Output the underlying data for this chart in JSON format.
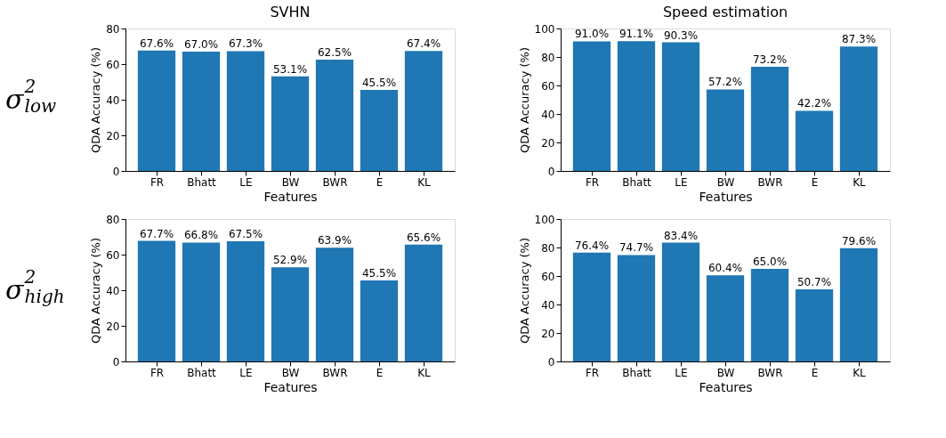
{
  "chart_data": [
    {
      "type": "bar",
      "title": "SVHN",
      "xlabel": "Features",
      "ylabel": "QDA Accuracy (%)",
      "categories": [
        "FR",
        "Bhatt",
        "LE",
        "BW",
        "BWR",
        "E",
        "KL"
      ],
      "values": [
        67.6,
        67.0,
        67.3,
        53.1,
        62.5,
        45.5,
        67.4
      ],
      "value_labels": [
        "67.6%",
        "67.0%",
        "67.3%",
        "53.1%",
        "62.5%",
        "45.5%",
        "67.4%"
      ],
      "color": "#1f77b4",
      "ylim": [
        0,
        80
      ],
      "yticks": [
        0,
        20,
        40,
        60,
        80
      ],
      "grid": false,
      "annotations": [
        "σ$^{2}$$_{low}$"
      ]
    },
    {
      "type": "bar",
      "title": "Speed estimation",
      "xlabel": "Features",
      "ylabel": "QDA Accuracy (%)",
      "categories": [
        "FR",
        "Bhatt",
        "LE",
        "BW",
        "BWR",
        "E",
        "KL"
      ],
      "values": [
        91.0,
        91.1,
        90.3,
        57.2,
        73.2,
        42.2,
        87.3
      ],
      "value_labels": [
        "91.0%",
        "91.1%",
        "90.3%",
        "57.2%",
        "73.2%",
        "42.2%",
        "87.3%"
      ],
      "color": "#1f77b4",
      "ylim": [
        0,
        100
      ],
      "yticks": [
        0,
        20,
        40,
        60,
        80,
        100
      ],
      "grid": false
    },
    {
      "type": "bar",
      "xlabel": "Features",
      "ylabel": "QDA Accuracy (%)",
      "categories": [
        "FR",
        "Bhatt",
        "LE",
        "BW",
        "BWR",
        "E",
        "KL"
      ],
      "values": [
        67.7,
        66.8,
        67.5,
        52.9,
        63.9,
        45.5,
        65.6
      ],
      "value_labels": [
        "67.7%",
        "66.8%",
        "67.5%",
        "52.9%",
        "63.9%",
        "45.5%",
        "65.6%"
      ],
      "color": "#1f77b4",
      "ylim": [
        0,
        80
      ],
      "yticks": [
        0,
        20,
        40,
        60,
        80
      ],
      "grid": false,
      "annotations": [
        "σ$^{2}$$_{high}$"
      ]
    },
    {
      "type": "bar",
      "xlabel": "Features",
      "ylabel": "QDA Accuracy (%)",
      "categories": [
        "FR",
        "Bhatt",
        "LE",
        "BW",
        "BWR",
        "E",
        "KL"
      ],
      "values": [
        76.4,
        74.7,
        83.4,
        60.4,
        65.0,
        50.7,
        79.6
      ],
      "value_labels": [
        "76.4%",
        "74.7%",
        "83.4%",
        "60.4%",
        "65.0%",
        "50.7%",
        "79.6%"
      ],
      "color": "#1f77b4",
      "ylim": [
        0,
        100
      ],
      "yticks": [
        0,
        20,
        40,
        60,
        80,
        100
      ],
      "grid": false
    }
  ]
}
